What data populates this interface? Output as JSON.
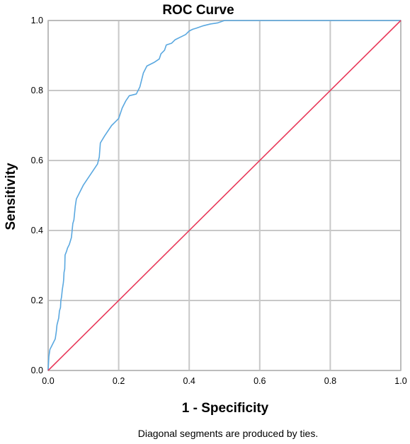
{
  "chart_data": {
    "type": "line",
    "title": "ROC Curve",
    "xlabel": "1 - Specificity",
    "ylabel": "Sensitivity",
    "footnote": "Diagonal segments are produced by ties.",
    "xlim": [
      0,
      1
    ],
    "ylim": [
      0,
      1
    ],
    "xticks": [
      "0.0",
      "0.2",
      "0.4",
      "0.6",
      "0.8",
      "1.0"
    ],
    "yticks": [
      "0.0",
      "0.2",
      "0.4",
      "0.6",
      "0.8",
      "1.0"
    ],
    "grid": true,
    "legend": "none",
    "series": [
      {
        "color": "#5aa8e0",
        "points": [
          [
            0.0,
            0.0
          ],
          [
            0.002,
            0.04
          ],
          [
            0.005,
            0.06
          ],
          [
            0.01,
            0.07
          ],
          [
            0.015,
            0.08
          ],
          [
            0.02,
            0.09
          ],
          [
            0.023,
            0.11
          ],
          [
            0.025,
            0.13
          ],
          [
            0.03,
            0.15
          ],
          [
            0.032,
            0.17
          ],
          [
            0.035,
            0.18
          ],
          [
            0.036,
            0.2
          ],
          [
            0.038,
            0.21
          ],
          [
            0.04,
            0.23
          ],
          [
            0.043,
            0.25
          ],
          [
            0.044,
            0.26
          ],
          [
            0.045,
            0.28
          ],
          [
            0.047,
            0.29
          ],
          [
            0.048,
            0.33
          ],
          [
            0.052,
            0.34
          ],
          [
            0.055,
            0.35
          ],
          [
            0.06,
            0.36
          ],
          [
            0.063,
            0.37
          ],
          [
            0.066,
            0.38
          ],
          [
            0.068,
            0.4
          ],
          [
            0.07,
            0.42
          ],
          [
            0.073,
            0.43
          ],
          [
            0.075,
            0.45
          ],
          [
            0.077,
            0.47
          ],
          [
            0.08,
            0.49
          ],
          [
            0.085,
            0.5
          ],
          [
            0.1,
            0.53
          ],
          [
            0.12,
            0.56
          ],
          [
            0.14,
            0.59
          ],
          [
            0.145,
            0.61
          ],
          [
            0.148,
            0.65
          ],
          [
            0.16,
            0.67
          ],
          [
            0.18,
            0.7
          ],
          [
            0.19,
            0.71
          ],
          [
            0.2,
            0.72
          ],
          [
            0.21,
            0.75
          ],
          [
            0.22,
            0.77
          ],
          [
            0.23,
            0.785
          ],
          [
            0.25,
            0.79
          ],
          [
            0.26,
            0.81
          ],
          [
            0.265,
            0.83
          ],
          [
            0.27,
            0.85
          ],
          [
            0.28,
            0.87
          ],
          [
            0.3,
            0.88
          ],
          [
            0.315,
            0.89
          ],
          [
            0.32,
            0.905
          ],
          [
            0.33,
            0.915
          ],
          [
            0.335,
            0.93
          ],
          [
            0.35,
            0.935
          ],
          [
            0.36,
            0.945
          ],
          [
            0.38,
            0.955
          ],
          [
            0.39,
            0.96
          ],
          [
            0.4,
            0.97
          ],
          [
            0.41,
            0.975
          ],
          [
            0.42,
            0.978
          ],
          [
            0.44,
            0.985
          ],
          [
            0.46,
            0.99
          ],
          [
            0.48,
            0.993
          ],
          [
            0.5,
            1.0
          ],
          [
            0.56,
            1.0
          ],
          [
            1.0,
            1.0
          ]
        ]
      },
      {
        "color": "#e8395a",
        "points": [
          [
            0.0,
            0.0
          ],
          [
            1.0,
            1.0
          ]
        ]
      }
    ]
  }
}
